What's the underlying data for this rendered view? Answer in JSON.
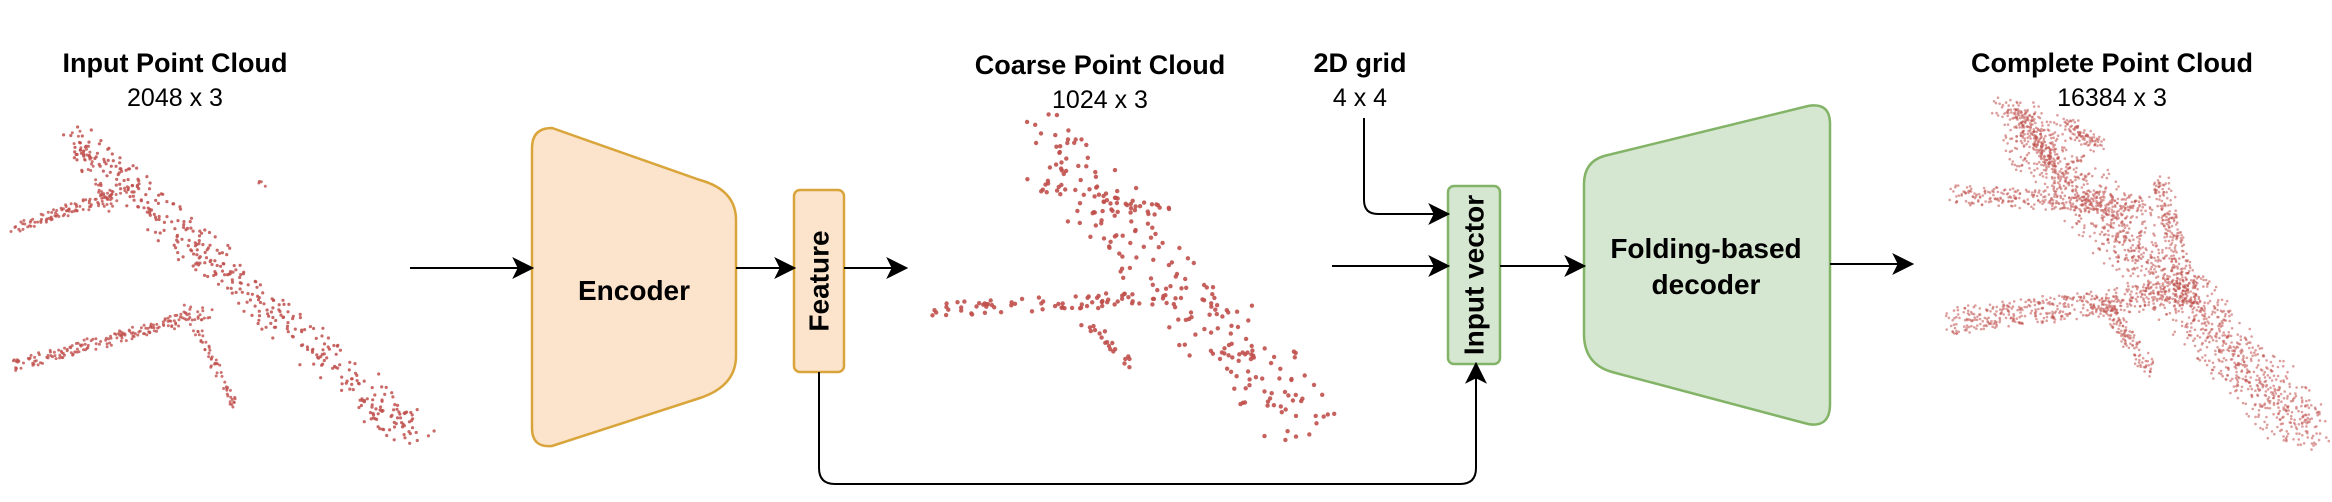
{
  "colors": {
    "encoder_fill": "#fbe3cc",
    "encoder_stroke": "#d9a53a",
    "decoder_fill": "#d6e7d1",
    "decoder_stroke": "#82b366",
    "points": "#c0504d",
    "arrows": "#000000"
  },
  "labels": {
    "input_title": "Input Point Cloud",
    "input_size": "2048 x 3",
    "coarse_title": "Coarse Point Cloud",
    "coarse_size": "1024 x 3",
    "grid_title": "2D grid",
    "grid_size": "4 x 4",
    "complete_title": "Complete Point Cloud",
    "complete_size": "16384 x 3"
  },
  "blocks": {
    "encoder": "Encoder",
    "feature": "Feature",
    "input_vector": "Input vector",
    "decoder_line1": "Folding-based",
    "decoder_line2": "decoder"
  },
  "icons": {
    "input_cloud": "airplane-point-cloud-icon",
    "coarse_cloud": "airplane-point-cloud-icon",
    "complete_cloud": "airplane-point-cloud-icon"
  }
}
